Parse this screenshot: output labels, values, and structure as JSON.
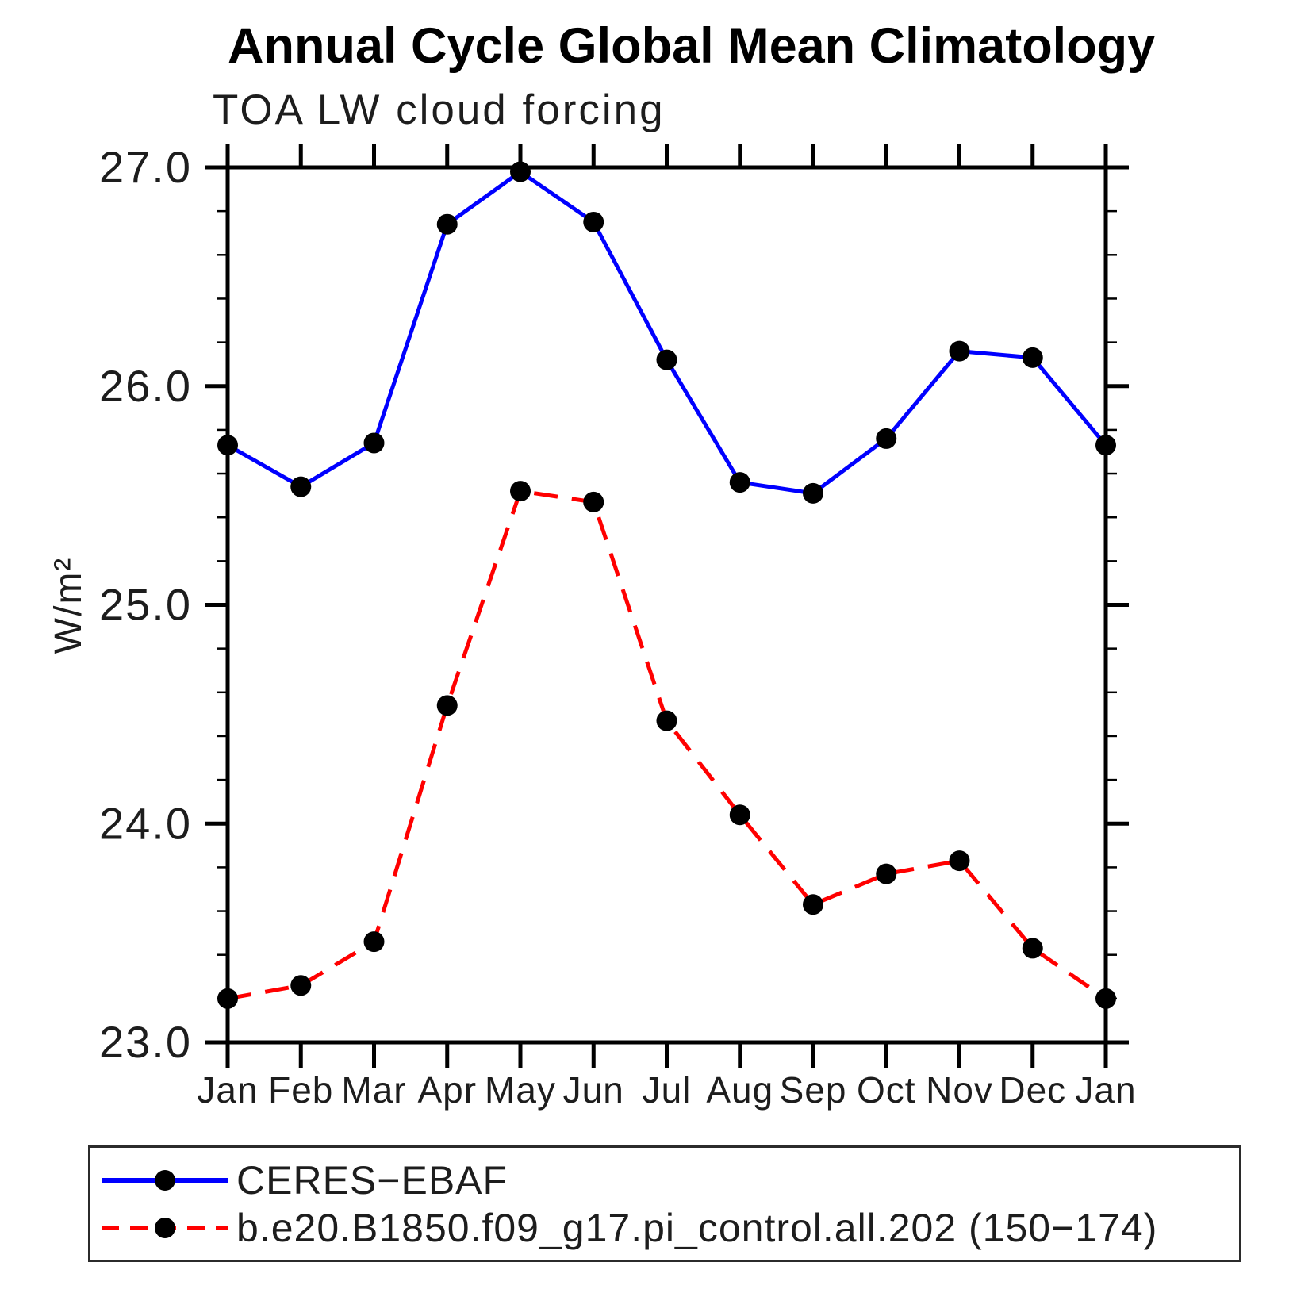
{
  "chart_data": {
    "type": "line",
    "title": "Annual Cycle Global Mean Climatology",
    "subtitle": "TOA LW cloud forcing",
    "ylabel": "W/m²",
    "xlabel": "",
    "categories": [
      "Jan",
      "Feb",
      "Mar",
      "Apr",
      "May",
      "Jun",
      "Jul",
      "Aug",
      "Sep",
      "Oct",
      "Nov",
      "Dec",
      "Jan"
    ],
    "series": [
      {
        "name": "CERES−EBAF",
        "color": "#0000ff",
        "line_style": "solid",
        "marker": "filled-circle",
        "marker_color": "#000000",
        "values": [
          25.73,
          25.54,
          25.74,
          26.74,
          26.98,
          26.75,
          26.12,
          25.56,
          25.51,
          25.76,
          26.16,
          26.13,
          25.73
        ]
      },
      {
        "name": "b.e20.B1850.f09_g17.pi_control.all.202 (150−174)",
        "color": "#ff0000",
        "line_style": "dashed",
        "marker": "filled-circle",
        "marker_color": "#000000",
        "values": [
          23.2,
          23.26,
          23.46,
          24.54,
          25.52,
          25.47,
          24.47,
          24.04,
          23.63,
          23.77,
          23.83,
          23.43,
          23.2
        ]
      }
    ],
    "ylim": [
      23.0,
      27.0
    ],
    "ytick_major_step": 1.0,
    "ytick_minor_step": 0.2,
    "ytick_labels": [
      "23.0",
      "24.0",
      "25.0",
      "26.0",
      "27.0"
    ],
    "grid": false,
    "axis_color": "#000000",
    "legend_position": "bottom-left-box"
  }
}
